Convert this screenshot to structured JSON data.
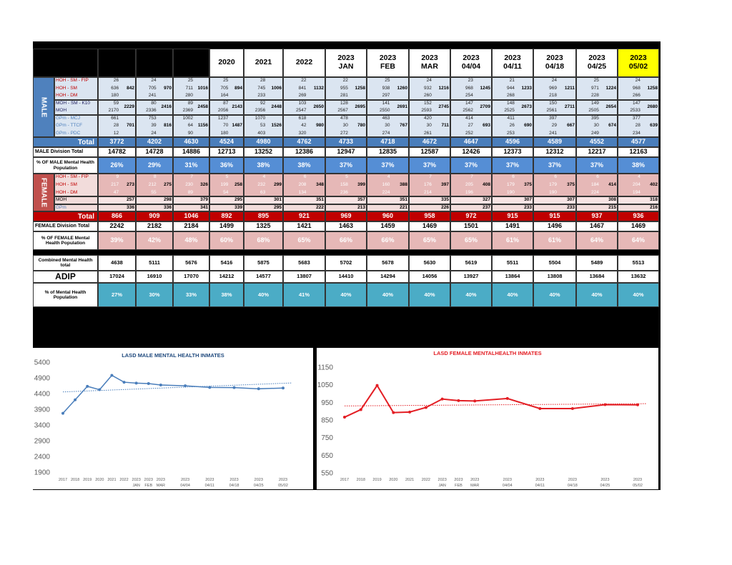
{
  "table": {
    "headers": [
      null,
      null,
      null,
      [
        "2020"
      ],
      [
        "2021"
      ],
      [
        "2022"
      ],
      [
        "2023",
        "JAN"
      ],
      [
        "2023",
        "FEB"
      ],
      [
        "2023",
        "MAR"
      ],
      [
        "2023",
        "04/04"
      ],
      [
        "2023",
        "04/11"
      ],
      [
        "2023",
        "04/18"
      ],
      [
        "2023",
        "04/25"
      ],
      [
        "2023",
        "05/02"
      ]
    ],
    "male": {
      "label": "MALE",
      "groups": [
        {
          "labels": [
            "HOH - SM - FIP",
            "HOH - SM",
            "HOH - DM"
          ],
          "values": [
            [
              26,
              636,
              180
            ],
            [
              24,
              705,
              241
            ],
            [
              25,
              711,
              280
            ],
            [
              25,
              705,
              164
            ],
            [
              28,
              745,
              233
            ],
            [
              22,
              841,
              269
            ],
            [
              22,
              955,
              281
            ],
            [
              25,
              938,
              297
            ],
            [
              24,
              932,
              260
            ],
            [
              23,
              968,
              254
            ],
            [
              21,
              944,
              268
            ],
            [
              24,
              969,
              218
            ],
            [
              25,
              971,
              228
            ],
            [
              24,
              968,
              266
            ]
          ],
          "subtotals": [
            842,
            970,
            1016,
            894,
            1006,
            1132,
            1258,
            1260,
            1216,
            1245,
            1233,
            1211,
            1224,
            1258
          ]
        },
        {
          "labels": [
            "MOH - SM - K10",
            "MOH"
          ],
          "values": [
            [
              59,
              2170
            ],
            [
              80,
              2336
            ],
            [
              89,
              2369
            ],
            [
              87,
              2056
            ],
            [
              92,
              2356
            ],
            [
              103,
              2547
            ],
            [
              128,
              2567
            ],
            [
              141,
              2550
            ],
            [
              152,
              2593
            ],
            [
              147,
              2562
            ],
            [
              148,
              2525
            ],
            [
              150,
              2561
            ],
            [
              149,
              2505
            ],
            [
              147,
              2533
            ]
          ],
          "subtotals": [
            2229,
            2416,
            2458,
            2143,
            2448,
            2650,
            2695,
            2691,
            2745,
            2709,
            2673,
            2711,
            2654,
            2680
          ]
        },
        {
          "labels": [
            "GPm - MCJ",
            "GPm - TTCF",
            "GPm - PDC"
          ],
          "values": [
            [
              661,
              28,
              12
            ],
            [
              753,
              39,
              24
            ],
            [
              1002,
              64,
              90
            ],
            [
              1237,
              70,
              180
            ],
            [
              1070,
              53,
              403
            ],
            [
              618,
              42,
              320
            ],
            [
              478,
              30,
              272
            ],
            [
              463,
              30,
              274
            ],
            [
              420,
              30,
              261
            ],
            [
              414,
              27,
              252
            ],
            [
              411,
              26,
              253
            ],
            [
              397,
              29,
              241
            ],
            [
              395,
              30,
              249
            ],
            [
              377,
              28,
              234
            ]
          ],
          "subtotals": [
            701,
            816,
            1156,
            1487,
            1526,
            980,
            780,
            767,
            711,
            693,
            690,
            667,
            674,
            639
          ]
        }
      ],
      "total_label": "Total",
      "totals": [
        3772,
        4202,
        4630,
        4524,
        4980,
        4762,
        4733,
        4718,
        4672,
        4647,
        4596,
        4589,
        4552,
        4577
      ]
    },
    "male_division": {
      "label": "MALE Division Total",
      "values": [
        14782,
        14728,
        14886,
        12713,
        13252,
        12386,
        12947,
        12835,
        12587,
        12426,
        12373,
        12312,
        12217,
        12163
      ]
    },
    "male_percent": {
      "label": "% OF MALE Mental Health Population",
      "values": [
        "26%",
        "29%",
        "31%",
        "36%",
        "38%",
        "38%",
        "37%",
        "37%",
        "37%",
        "37%",
        "37%",
        "37%",
        "37%",
        "38%"
      ]
    },
    "female": {
      "label": "FEMALE",
      "groups": [
        {
          "labels": [
            "HOH - SM - FIP",
            "HOH - SM",
            "HOH - DM"
          ],
          "values": [
            [
              9,
              217,
              47
            ],
            [
              8,
              212,
              55
            ],
            [
              7,
              230,
              89
            ],
            [
              5,
              199,
              54
            ],
            [
              4,
              232,
              63
            ],
            [
              6,
              208,
              134
            ],
            [
              5,
              158,
              236
            ],
            [
              4,
              160,
              224
            ],
            [
              7,
              176,
              214
            ],
            [
              7,
              205,
              196
            ],
            [
              6,
              179,
              190
            ],
            [
              6,
              179,
              190
            ],
            [
              6,
              184,
              224
            ],
            [
              4,
              204,
              194
            ]
          ],
          "subtotals": [
            273,
            275,
            326,
            258,
            299,
            348,
            399,
            388,
            397,
            408,
            375,
            375,
            414,
            402
          ]
        },
        {
          "labels": [
            "MOH"
          ],
          "values": [
            [
              257
            ],
            [
              298
            ],
            [
              379
            ],
            [
              295
            ],
            [
              301
            ],
            [
              351
            ],
            [
              357
            ],
            [
              351
            ],
            [
              335
            ],
            [
              327
            ],
            [
              307
            ],
            [
              307
            ],
            [
              308
            ],
            [
              318
            ]
          ]
        },
        {
          "labels": [
            "GPm"
          ],
          "values": [
            [
              336
            ],
            [
              336
            ],
            [
              341
            ],
            [
              339
            ],
            [
              295
            ],
            [
              222
            ],
            [
              213
            ],
            [
              221
            ],
            [
              226
            ],
            [
              237
            ],
            [
              233
            ],
            [
              233
            ],
            [
              215
            ],
            [
              216
            ]
          ]
        }
      ],
      "total_label": "Total",
      "totals": [
        866,
        909,
        1046,
        892,
        895,
        921,
        969,
        960,
        958,
        972,
        915,
        915,
        937,
        936
      ]
    },
    "female_division": {
      "label": "FEMALE Division Total",
      "values": [
        2242,
        2182,
        2184,
        1499,
        1325,
        1421,
        1463,
        1459,
        1469,
        1501,
        1491,
        1496,
        1467,
        1469
      ]
    },
    "female_percent": {
      "label": "% OF FEMALE Mental Health Population",
      "values": [
        "39%",
        "42%",
        "48%",
        "60%",
        "68%",
        "65%",
        "66%",
        "66%",
        "65%",
        "65%",
        "61%",
        "61%",
        "64%",
        "64%"
      ]
    },
    "combined": {
      "label": "Combined Mental Health total",
      "values": [
        4638,
        5111,
        5676,
        5416,
        5875,
        5683,
        5702,
        5678,
        5630,
        5619,
        5511,
        5504,
        5489,
        5513
      ]
    },
    "adip": {
      "label": "ADIP",
      "values": [
        17024,
        16910,
        17070,
        14212,
        14577,
        13807,
        14410,
        14294,
        14056,
        13927,
        13864,
        13808,
        13684,
        13632
      ]
    },
    "mh_percent": {
      "label": "% of Mental Health Population",
      "values": [
        "27%",
        "30%",
        "33%",
        "38%",
        "40%",
        "41%",
        "40%",
        "40%",
        "40%",
        "40%",
        "40%",
        "40%",
        "40%",
        "40%"
      ]
    }
  },
  "chart_data": [
    {
      "type": "line",
      "title": "LASD MALE MENTAL HEALTH INMATES",
      "color": "#4a7ebb",
      "title_color": "#1f497d",
      "trendline": true,
      "categories": [
        [
          "2017"
        ],
        [
          "2018"
        ],
        [
          "2019"
        ],
        [
          "2020"
        ],
        [
          "2021"
        ],
        [
          "2022"
        ],
        [
          "2023",
          "JAN"
        ],
        [
          "2023",
          "FEB"
        ],
        [
          "2023",
          "MAR"
        ],
        [
          "2023",
          "04/04"
        ],
        [
          "2023",
          "04/11"
        ],
        [
          "2023",
          "04/18"
        ],
        [
          "2023",
          "04/25"
        ],
        [
          "2023",
          "05/02"
        ]
      ],
      "values": [
        3772,
        4202,
        4630,
        4524,
        4980,
        4762,
        4733,
        4718,
        4672,
        4647,
        4596,
        4589,
        4552,
        4577
      ],
      "ylim": [
        1900,
        5400
      ],
      "yticks": [
        1900,
        2400,
        2900,
        3400,
        3900,
        4400,
        4900,
        5400
      ]
    },
    {
      "type": "line",
      "title": "LASD FEMALE MENTALHEALTH INMATES",
      "color": "#e31e24",
      "title_color": "#e31e24",
      "trendline": true,
      "categories": [
        [
          "2017"
        ],
        [
          "2018"
        ],
        [
          "2019"
        ],
        [
          "2020"
        ],
        [
          "2021"
        ],
        [
          "2022"
        ],
        [
          "2023",
          "JAN"
        ],
        [
          "2023",
          "FEB"
        ],
        [
          "2023",
          "MAR"
        ],
        [
          "2023",
          "04/04"
        ],
        [
          "2023",
          "04/11"
        ],
        [
          "2023",
          "04/18"
        ],
        [
          "2023",
          "04/25"
        ],
        [
          "2023",
          "05/02"
        ]
      ],
      "values": [
        866,
        909,
        1046,
        892,
        895,
        921,
        969,
        960,
        958,
        972,
        915,
        915,
        937,
        936
      ],
      "ylim": [
        550,
        1150
      ],
      "yticks": [
        550,
        650,
        750,
        850,
        950,
        1050,
        1150
      ]
    }
  ]
}
